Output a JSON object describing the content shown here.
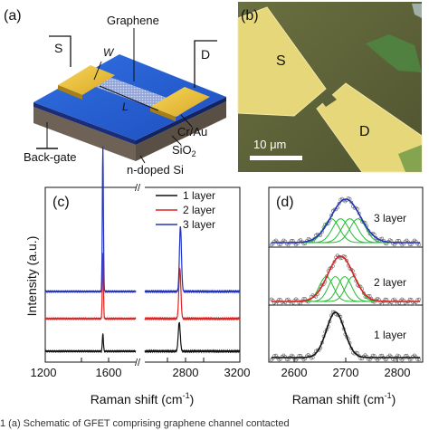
{
  "panel_a": {
    "label": "(a)",
    "graphene": "Graphene",
    "source": "S",
    "drain": "D",
    "width": "W",
    "length": "L",
    "contact": "Cr/Au",
    "backgate": "Back-gate",
    "oxide": "SiO",
    "oxide_sub": "2",
    "substrate": "n-doped Si"
  },
  "panel_b": {
    "label": "(b)",
    "source": "S",
    "drain": "D",
    "scale": "10 μm"
  },
  "panel_c": {
    "label": "(c)",
    "ylabel": "Intensity (a.u.)",
    "xlabel_pre": "Raman shift (cm",
    "xlabel_sup": "-1",
    "xlabel_post": ")",
    "ticks": [
      "1200",
      "1600",
      "2800",
      "3200"
    ],
    "legend": [
      {
        "label": "1 layer",
        "color": "#111111"
      },
      {
        "label": "2 layer",
        "color": "#dd2222"
      },
      {
        "label": "3 layer",
        "color": "#2233bb"
      }
    ]
  },
  "panel_d": {
    "label": "(d)",
    "xlabel_pre": "Raman shift (cm",
    "xlabel_sup": "-1",
    "xlabel_post": ")",
    "ticks": [
      "2600",
      "2700",
      "2800"
    ],
    "layers": [
      "3 layer",
      "2 layer",
      "1 layer"
    ]
  },
  "caption": "1    (a) Schematic of GFET comprising graphene channel contacted",
  "chart_data": [
    {
      "type": "line",
      "title": "(c)",
      "xlabel": "Raman shift (cm-1)",
      "ylabel": "Intensity (a.u.)",
      "xlim": [
        1200,
        3200
      ],
      "axis_break": true,
      "series": [
        {
          "name": "1 layer",
          "peaks": [
            {
              "x": 1582,
              "rel_height": 0.12
            },
            {
              "x": 2690,
              "rel_height": 0.2
            }
          ]
        },
        {
          "name": "2 layer",
          "peaks": [
            {
              "x": 1582,
              "rel_height": 0.45
            },
            {
              "x": 2695,
              "rel_height": 0.35
            }
          ]
        },
        {
          "name": "3 layer",
          "peaks": [
            {
              "x": 1582,
              "rel_height": 1.0
            },
            {
              "x": 2700,
              "rel_height": 0.45
            }
          ]
        }
      ],
      "legend_position": "top-right"
    },
    {
      "type": "scatter",
      "title": "(d)",
      "xlabel": "Raman shift (cm-1)",
      "xlim": [
        2550,
        2850
      ],
      "series": [
        {
          "name": "3 layer",
          "center": 2700,
          "width": 40,
          "components": 4
        },
        {
          "name": "2 layer",
          "center": 2690,
          "width": 35,
          "components": 4
        },
        {
          "name": "1 layer",
          "center": 2680,
          "width": 25,
          "components": 1
        }
      ]
    }
  ]
}
